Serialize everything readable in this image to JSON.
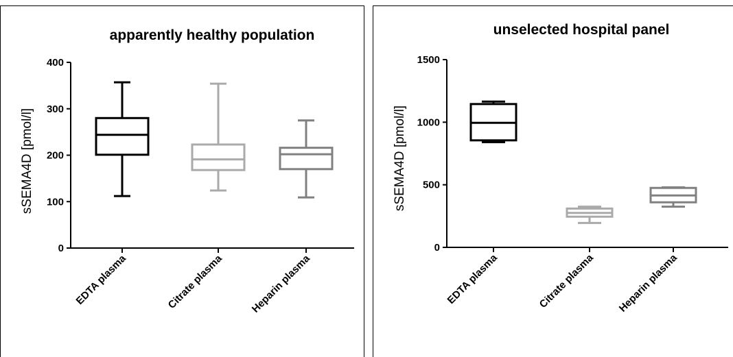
{
  "chart_data": [
    {
      "type": "boxplot",
      "title": "apparently healthy population",
      "ylabel": "sSEMA4D [pmol/l]",
      "xlabel": "",
      "ylim": [
        0,
        400
      ],
      "yticks": [
        0,
        100,
        200,
        300,
        400
      ],
      "ytick_labels": [
        "0",
        "100",
        "200",
        "300",
        "400"
      ],
      "categories": [
        "EDTA plasma",
        "Citrate plasma",
        "Heparin plasma"
      ],
      "colors": [
        "#000000",
        "#aaaaaa",
        "#808080"
      ],
      "boxes": [
        {
          "min": 112,
          "q1": 201,
          "median": 244,
          "q3": 280,
          "max": 357
        },
        {
          "min": 124,
          "q1": 168,
          "median": 191,
          "q3": 223,
          "max": 354
        },
        {
          "min": 109,
          "q1": 170,
          "median": 202,
          "q3": 216,
          "max": 275
        }
      ],
      "grid": false,
      "legend": "none"
    },
    {
      "type": "boxplot",
      "title": "unselected hospital panel",
      "ylabel": "sSEMA4D [pmol/l]",
      "xlabel": "",
      "ylim": [
        0,
        1500
      ],
      "yticks": [
        0,
        500,
        1000,
        1500
      ],
      "ytick_labels": [
        "0",
        "500",
        "1000",
        "1500"
      ],
      "categories": [
        "EDTA plasma",
        "Citrate plasma",
        "Heparin plasma"
      ],
      "colors": [
        "#000000",
        "#aaaaaa",
        "#808080"
      ],
      "boxes": [
        {
          "min": 840,
          "q1": 855,
          "median": 995,
          "q3": 1145,
          "max": 1165
        },
        {
          "min": 195,
          "q1": 245,
          "median": 275,
          "q3": 310,
          "max": 325
        },
        {
          "min": 325,
          "q1": 360,
          "median": 415,
          "q3": 475,
          "max": 480
        }
      ],
      "grid": false,
      "legend": "none"
    }
  ]
}
